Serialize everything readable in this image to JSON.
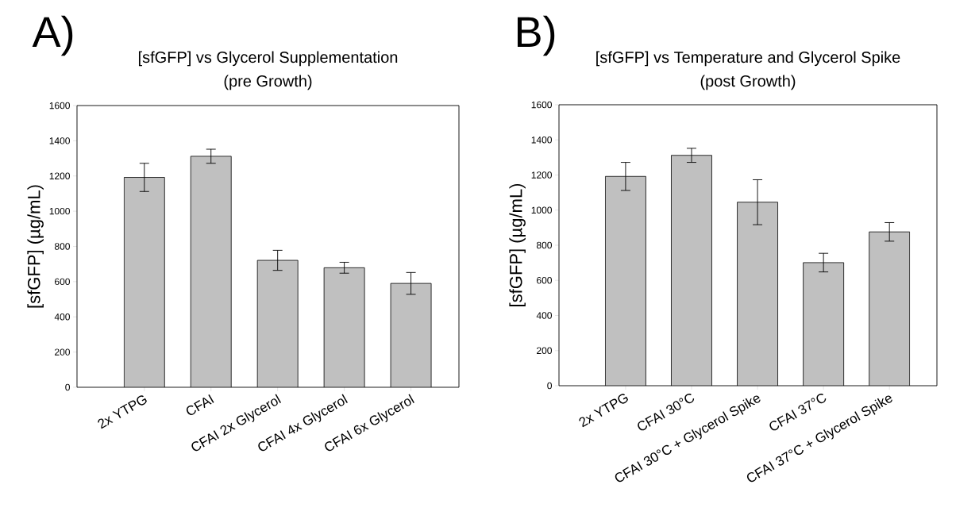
{
  "chart_data": [
    {
      "type": "bar",
      "title": "[sfGFP] vs Glycerol Supplementation",
      "subtitle": "(pre Growth)",
      "ylabel": "[sfGFP] (µg/mL)",
      "annotations": [
        "A)"
      ],
      "categories": [
        "2x YTPG",
        "CFAI",
        "CFAI 2x Glycerol",
        "CFAI 4x Glycerol",
        "CFAI 6x Glycerol"
      ],
      "values": [
        1192,
        1312,
        721,
        679,
        590
      ],
      "errors": [
        80,
        40,
        57,
        31,
        62
      ],
      "color": "#c0c0c0",
      "ylim": [
        0,
        1600
      ],
      "yticks": [
        0,
        200,
        400,
        600,
        800,
        1000,
        1200,
        1400,
        1600
      ]
    },
    {
      "type": "bar",
      "title": "[sfGFP] vs Temperature and Glycerol Spike",
      "subtitle": "(post Growth)",
      "ylabel": "[sfGFP] (µg/mL)",
      "annotations": [
        "B)"
      ],
      "categories": [
        "2x YTPG",
        "CFAI 30°C",
        "CFAI 30°C + Glycerol Spike",
        "CFAI 37°C",
        "CFAI 37°C + Glycerol Spike"
      ],
      "values": [
        1192,
        1312,
        1045,
        701,
        876
      ],
      "errors": [
        80,
        40,
        128,
        53,
        53
      ],
      "color": "#c0c0c0",
      "ylim": [
        0,
        1600
      ],
      "yticks": [
        0,
        200,
        400,
        600,
        800,
        1000,
        1200,
        1400,
        1600
      ]
    }
  ]
}
